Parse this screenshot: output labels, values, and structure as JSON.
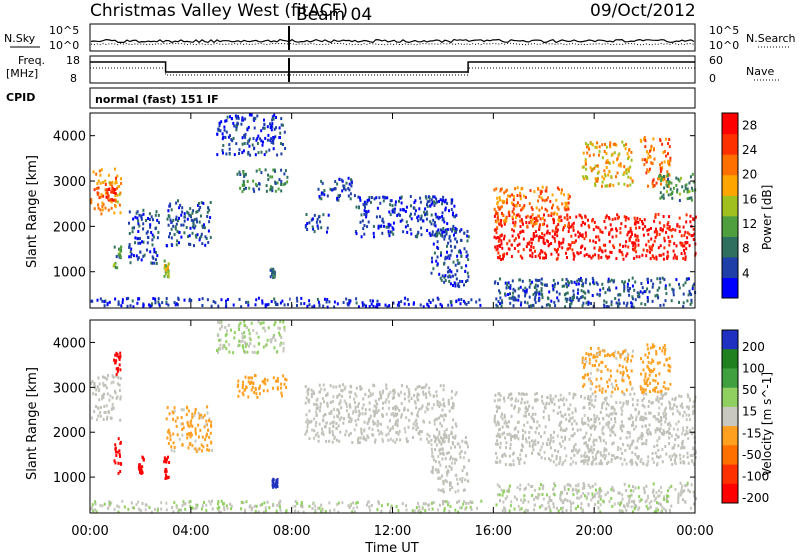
{
  "header": {
    "title": "Christmas Valley West (fitACF)",
    "beam": "Beam 04",
    "date": "09/Oct/2012"
  },
  "meta_panel": {
    "nsky_label": "N.Sky",
    "nsearch_label": "N.Search",
    "noise_ticks_left": [
      "10^5",
      "10^0"
    ],
    "noise_ticks_right": [
      "10^5",
      "10^0"
    ],
    "freq_label_1": "Freq.",
    "freq_label_2": "[MHz]",
    "freq_ticks": [
      "18",
      "8"
    ],
    "nave_label": "Nave",
    "nave_ticks": [
      "60",
      "0"
    ],
    "cpid_label": "CPID",
    "cpid_value": "normal (fast) 151 IF"
  },
  "colors": {
    "power_scale": [
      "#0000ff",
      "#1f3fa8",
      "#2f6f5f",
      "#4f9f3f",
      "#a0c020",
      "#ffa500",
      "#ff7000",
      "#ff3000",
      "#ff0000"
    ],
    "velocity_scale": [
      "#2030c0",
      "#208020",
      "#40a040",
      "#90d060",
      "#c8c8c0",
      "#ffa020",
      "#ff7000",
      "#ff3000",
      "#ff0000"
    ],
    "ground_scatter": "#c0c0b8"
  },
  "chart_data": [
    {
      "type": "heatmap",
      "name": "power",
      "ylabel": "Slant Range [km]",
      "yticks": [
        1000,
        2000,
        3000,
        4000
      ],
      "ylim": [
        200,
        4500
      ],
      "xlim": [
        0,
        24
      ],
      "xticks": [
        0,
        4,
        8,
        12,
        16,
        20,
        24
      ],
      "colorbar": {
        "label": "Power [dB]",
        "ticks": [
          4,
          8,
          12,
          16,
          20,
          24,
          28
        ],
        "range": [
          0,
          30
        ]
      },
      "regions": [
        {
          "t0": 0.0,
          "t1": 1.2,
          "r0": 2300,
          "r1": 3300,
          "v": 20
        },
        {
          "t0": 0.6,
          "t1": 1.0,
          "r0": 2600,
          "r1": 2900,
          "v": 26
        },
        {
          "t0": 0.9,
          "t1": 1.2,
          "r0": 1100,
          "r1": 1700,
          "v": 10
        },
        {
          "t0": 1.5,
          "t1": 2.7,
          "r0": 1200,
          "r1": 2400,
          "v": 5
        },
        {
          "t0": 2.9,
          "t1": 3.1,
          "r0": 900,
          "r1": 1300,
          "v": 14
        },
        {
          "t0": 3.0,
          "t1": 4.8,
          "r0": 1600,
          "r1": 2600,
          "v": 6
        },
        {
          "t0": 5.0,
          "t1": 7.7,
          "r0": 3600,
          "r1": 4500,
          "v": 4
        },
        {
          "t0": 5.8,
          "t1": 7.8,
          "r0": 2800,
          "r1": 3300,
          "v": 9
        },
        {
          "t0": 7.1,
          "t1": 7.3,
          "r0": 900,
          "r1": 1100,
          "v": 8
        },
        {
          "t0": 8.5,
          "t1": 9.5,
          "r0": 1900,
          "r1": 2300,
          "v": 5
        },
        {
          "t0": 9.0,
          "t1": 10.5,
          "r0": 2600,
          "r1": 3100,
          "v": 5
        },
        {
          "t0": 10.5,
          "t1": 14.5,
          "r0": 1800,
          "r1": 2700,
          "v": 4
        },
        {
          "t0": 13.5,
          "t1": 15.0,
          "r0": 700,
          "r1": 2000,
          "v": 5
        },
        {
          "t0": 0.0,
          "t1": 15.5,
          "r0": 250,
          "r1": 450,
          "v": 3
        },
        {
          "t0": 16.0,
          "t1": 24.0,
          "r0": 1300,
          "r1": 2300,
          "v": 28
        },
        {
          "t0": 16.0,
          "t1": 19.0,
          "r0": 2000,
          "r1": 2900,
          "v": 22
        },
        {
          "t0": 19.5,
          "t1": 21.5,
          "r0": 2900,
          "r1": 3900,
          "v": 18
        },
        {
          "t0": 21.8,
          "t1": 23.0,
          "r0": 2900,
          "r1": 4000,
          "v": 22
        },
        {
          "t0": 22.5,
          "t1": 24.0,
          "r0": 2600,
          "r1": 3200,
          "v": 10
        },
        {
          "t0": 16.0,
          "t1": 24.0,
          "r0": 250,
          "r1": 900,
          "v": 6
        }
      ]
    },
    {
      "type": "heatmap",
      "name": "velocity",
      "ylabel": "Slant Range [km]",
      "yticks": [
        1000,
        2000,
        3000,
        4000
      ],
      "ylim": [
        200,
        4500
      ],
      "xlim": [
        0,
        24
      ],
      "xticks": [
        0,
        4,
        8,
        12,
        16,
        20,
        24
      ],
      "xticklabels": [
        "00:00",
        "04:00",
        "08:00",
        "12:00",
        "16:00",
        "20:00",
        "00:00"
      ],
      "xlabel": "Time UT",
      "colorbar": {
        "label": "Velocity [m s^-1]",
        "ticks": [
          200,
          100,
          50,
          15,
          -15,
          -50,
          -100,
          -200
        ],
        "range": [
          -250,
          250
        ]
      },
      "regions": [
        {
          "t0": 0.0,
          "t1": 1.2,
          "r0": 2300,
          "r1": 3300,
          "v": 0
        },
        {
          "t0": 0.9,
          "t1": 1.2,
          "r0": 1100,
          "r1": 1900,
          "v": -220
        },
        {
          "t0": 0.9,
          "t1": 1.2,
          "r0": 3300,
          "r1": 3800,
          "v": -220
        },
        {
          "t0": 1.9,
          "t1": 2.1,
          "r0": 1100,
          "r1": 1500,
          "v": -220
        },
        {
          "t0": 2.9,
          "t1": 3.1,
          "r0": 1000,
          "r1": 1500,
          "v": -220
        },
        {
          "t0": 3.0,
          "t1": 4.8,
          "r0": 1600,
          "r1": 2600,
          "v": -40
        },
        {
          "t0": 5.0,
          "t1": 7.7,
          "r0": 3800,
          "r1": 4500,
          "v": 30
        },
        {
          "t0": 5.8,
          "t1": 7.8,
          "r0": 2800,
          "r1": 3300,
          "v": -60
        },
        {
          "t0": 7.2,
          "t1": 7.4,
          "r0": 800,
          "r1": 1000,
          "v": 220
        },
        {
          "t0": 8.5,
          "t1": 14.5,
          "r0": 1800,
          "r1": 3100,
          "v": 0
        },
        {
          "t0": 13.5,
          "t1": 15.0,
          "r0": 700,
          "r1": 2000,
          "v": 0
        },
        {
          "t0": 0.0,
          "t1": 15.5,
          "r0": 250,
          "r1": 500,
          "v": 25
        },
        {
          "t0": 16.0,
          "t1": 24.0,
          "r0": 1300,
          "r1": 2900,
          "v": 0
        },
        {
          "t0": 19.5,
          "t1": 21.5,
          "r0": 2900,
          "r1": 3900,
          "v": -40
        },
        {
          "t0": 21.8,
          "t1": 23.0,
          "r0": 2900,
          "r1": 4000,
          "v": -60
        },
        {
          "t0": 16.0,
          "t1": 24.0,
          "r0": 250,
          "r1": 900,
          "v": 20
        }
      ]
    }
  ]
}
